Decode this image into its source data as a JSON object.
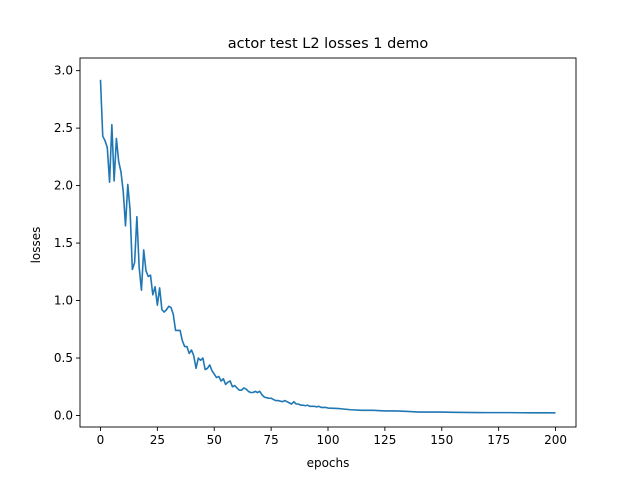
{
  "chart_data": {
    "type": "line",
    "title": "actor test L2 losses 1 demo",
    "xlabel": "epochs",
    "ylabel": "losses",
    "xlim": [
      -9,
      209
    ],
    "ylim": [
      -0.1,
      3.11
    ],
    "xticks": [
      0,
      25,
      50,
      75,
      100,
      125,
      150,
      175,
      200
    ],
    "yticks": [
      0.0,
      0.5,
      1.0,
      1.5,
      2.0,
      2.5,
      3.0
    ],
    "xtick_labels": [
      "0",
      "25",
      "50",
      "75",
      "100",
      "125",
      "150",
      "175",
      "200"
    ],
    "ytick_labels": [
      "0.0",
      "0.5",
      "1.0",
      "1.5",
      "2.0",
      "2.5",
      "3.0"
    ],
    "grid": false,
    "series": [
      {
        "color": "#1f77b4",
        "x": [
          0,
          1,
          2,
          3,
          4,
          5,
          6,
          7,
          8,
          9,
          10,
          11,
          12,
          13,
          14,
          15,
          16,
          17,
          18,
          19,
          20,
          21,
          22,
          23,
          24,
          25,
          26,
          27,
          28,
          29,
          30,
          31,
          32,
          33,
          34,
          35,
          36,
          37,
          38,
          39,
          40,
          41,
          42,
          43,
          44,
          45,
          46,
          47,
          48,
          49,
          50,
          51,
          52,
          53,
          54,
          55,
          56,
          57,
          58,
          59,
          60,
          61,
          62,
          63,
          64,
          65,
          66,
          67,
          68,
          69,
          70,
          71,
          72,
          73,
          74,
          75,
          76,
          77,
          78,
          79,
          80,
          81,
          82,
          83,
          84,
          85,
          86,
          87,
          88,
          89,
          90,
          91,
          92,
          93,
          94,
          95,
          96,
          97,
          98,
          99,
          100,
          105,
          110,
          115,
          120,
          125,
          130,
          135,
          140,
          145,
          150,
          155,
          160,
          165,
          170,
          175,
          180,
          185,
          190,
          195,
          200
        ],
        "y": [
          2.92,
          2.43,
          2.39,
          2.33,
          2.03,
          2.53,
          2.04,
          2.41,
          2.21,
          2.12,
          1.95,
          1.65,
          2.01,
          1.79,
          1.27,
          1.33,
          1.73,
          1.29,
          1.09,
          1.44,
          1.26,
          1.21,
          1.22,
          1.05,
          1.12,
          0.96,
          1.11,
          0.92,
          0.9,
          0.92,
          0.95,
          0.94,
          0.88,
          0.74,
          0.74,
          0.74,
          0.65,
          0.6,
          0.6,
          0.54,
          0.57,
          0.52,
          0.41,
          0.5,
          0.48,
          0.5,
          0.4,
          0.41,
          0.44,
          0.39,
          0.36,
          0.33,
          0.34,
          0.3,
          0.32,
          0.27,
          0.29,
          0.3,
          0.25,
          0.26,
          0.24,
          0.22,
          0.22,
          0.24,
          0.23,
          0.21,
          0.2,
          0.2,
          0.21,
          0.2,
          0.21,
          0.18,
          0.16,
          0.155,
          0.15,
          0.15,
          0.14,
          0.13,
          0.13,
          0.125,
          0.12,
          0.13,
          0.12,
          0.11,
          0.1,
          0.12,
          0.1,
          0.1,
          0.09,
          0.09,
          0.085,
          0.09,
          0.08,
          0.08,
          0.08,
          0.075,
          0.08,
          0.07,
          0.07,
          0.07,
          0.065,
          0.06,
          0.05,
          0.045,
          0.045,
          0.04,
          0.04,
          0.035,
          0.03,
          0.03,
          0.03,
          0.028,
          0.027,
          0.026,
          0.025,
          0.025,
          0.025,
          0.024,
          0.023,
          0.023,
          0.023
        ]
      }
    ]
  }
}
